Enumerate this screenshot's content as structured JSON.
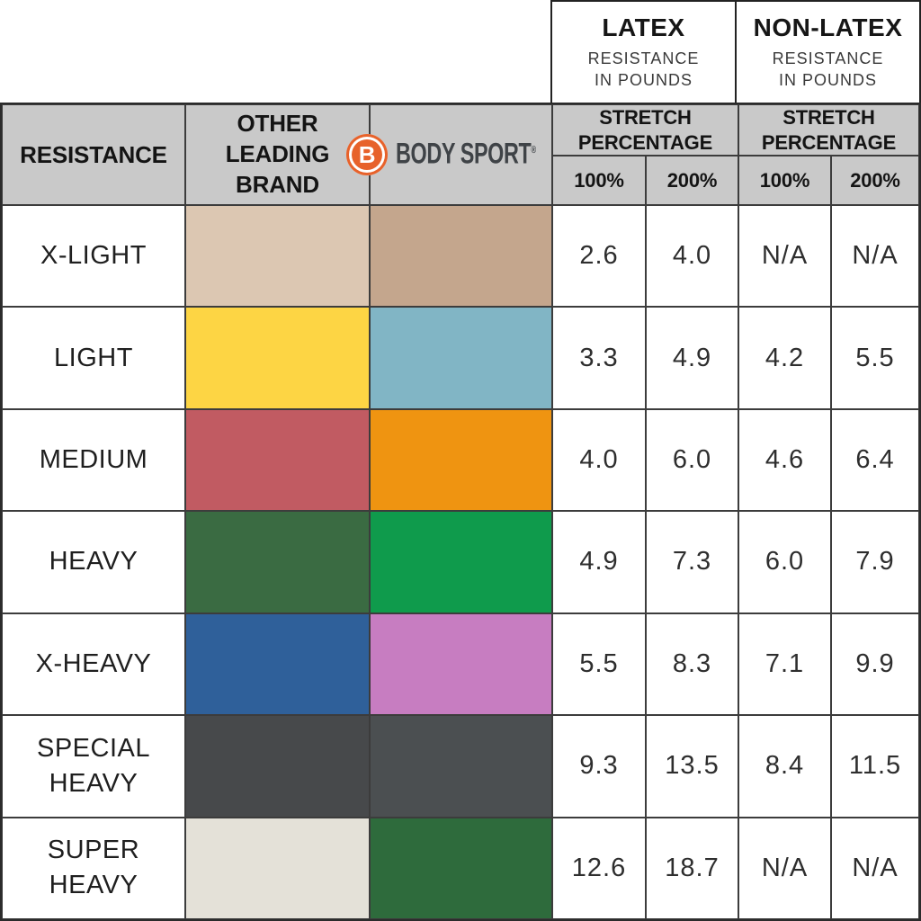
{
  "top_header": {
    "latex": {
      "title": "LATEX",
      "subtitle": "RESISTANCE IN POUNDS"
    },
    "non_latex": {
      "title": "NON-LATEX",
      "subtitle": "RESISTANCE IN POUNDS"
    }
  },
  "table_header": {
    "resistance": "RESISTANCE",
    "other_brand": "OTHER LEADING BRAND",
    "logo": {
      "letter": "B",
      "name": "BODY SPORT",
      "reg": "®"
    },
    "stretch_latex": "STRETCH PERCENTAGE",
    "stretch_non_latex": "STRETCH PERCENTAGE",
    "latex_cols": {
      "0": "100%",
      "1": "200%"
    },
    "non_latex_cols": {
      "0": "100%",
      "1": "200%"
    }
  },
  "colors": {
    "header_bg": "#c9c9c9",
    "border": "#3c3c3c",
    "logo_orange": "#e7622b",
    "logo_text": "#3f4347"
  },
  "rows": [
    {
      "label": "X-LIGHT",
      "other_color": "#dcc7b2",
      "body_color": "#c4a68d",
      "latex_100": "2.6",
      "latex_200": "4.0",
      "nonlatex_100": "N/A",
      "nonlatex_200": "N/A"
    },
    {
      "label": "LIGHT",
      "other_color": "#fdd544",
      "body_color": "#81b5c5",
      "latex_100": "3.3",
      "latex_200": "4.9",
      "nonlatex_100": "4.2",
      "nonlatex_200": "5.5"
    },
    {
      "label": "MEDIUM",
      "other_color": "#c15b62",
      "body_color": "#ef9411",
      "latex_100": "4.0",
      "latex_200": "6.0",
      "nonlatex_100": "4.6",
      "nonlatex_200": "6.4"
    },
    {
      "label": "HEAVY",
      "other_color": "#3a6b42",
      "body_color": "#0f9b4c",
      "latex_100": "4.9",
      "latex_200": "7.3",
      "nonlatex_100": "6.0",
      "nonlatex_200": "7.9"
    },
    {
      "label": "X-HEAVY",
      "other_color": "#2f609a",
      "body_color": "#c77dc1",
      "latex_100": "5.5",
      "latex_200": "8.3",
      "nonlatex_100": "7.1",
      "nonlatex_200": "9.9"
    },
    {
      "label": "SPECIAL HEAVY",
      "other_color": "#47494b",
      "body_color": "#4b4f51",
      "latex_100": "9.3",
      "latex_200": "13.5",
      "nonlatex_100": "8.4",
      "nonlatex_200": "11.5"
    },
    {
      "label": "SUPER HEAVY",
      "other_color": "#e4e1d8",
      "body_color": "#2e6b3c",
      "latex_100": "12.6",
      "latex_200": "18.7",
      "nonlatex_100": "N/A",
      "nonlatex_200": "N/A"
    }
  ],
  "chart_data": {
    "type": "table",
    "columns": [
      "RESISTANCE",
      "OTHER LEADING BRAND (color)",
      "BODY SPORT (color)",
      "LATEX STRETCH 100%",
      "LATEX STRETCH 200%",
      "NON-LATEX STRETCH 100%",
      "NON-LATEX STRETCH 200%"
    ],
    "column_groups": [
      {
        "label": "LATEX RESISTANCE IN POUNDS",
        "columns": [
          "100%",
          "200%"
        ]
      },
      {
        "label": "NON-LATEX RESISTANCE IN POUNDS",
        "columns": [
          "100%",
          "200%"
        ]
      }
    ],
    "rows": [
      [
        "X-LIGHT",
        "#dcc7b2",
        "#c4a68d",
        2.6,
        4.0,
        "N/A",
        "N/A"
      ],
      [
        "LIGHT",
        "#fdd544",
        "#81b5c5",
        3.3,
        4.9,
        4.2,
        5.5
      ],
      [
        "MEDIUM",
        "#c15b62",
        "#ef9411",
        4.0,
        6.0,
        4.6,
        6.4
      ],
      [
        "HEAVY",
        "#3a6b42",
        "#0f9b4c",
        4.9,
        7.3,
        6.0,
        7.9
      ],
      [
        "X-HEAVY",
        "#2f609a",
        "#c77dc1",
        5.5,
        8.3,
        7.1,
        9.9
      ],
      [
        "SPECIAL HEAVY",
        "#47494b",
        "#4b4f51",
        9.3,
        13.5,
        8.4,
        11.5
      ],
      [
        "SUPER HEAVY",
        "#e4e1d8",
        "#2e6b3c",
        12.6,
        18.7,
        "N/A",
        "N/A"
      ]
    ]
  }
}
